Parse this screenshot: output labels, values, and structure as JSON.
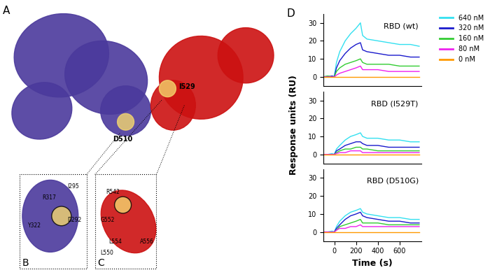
{
  "panels": {
    "A": {
      "label": "A",
      "sites": [
        "D510",
        "I529"
      ]
    },
    "B": {
      "label": "B",
      "residues": [
        "R317",
        "I295",
        "Y322",
        "D292"
      ]
    },
    "C": {
      "label": "C",
      "residues": [
        "R542",
        "G552",
        "L554",
        "L550",
        "A556"
      ]
    },
    "D": {
      "label": "D",
      "y_label": "Response units (RU)"
    }
  },
  "chart_data": [
    {
      "type": "line",
      "title": "RBD (wt)",
      "legend": "upper right",
      "tick_labels": "y",
      "x": [
        -100,
        -60,
        -20,
        0,
        20,
        50,
        100,
        150,
        200,
        240,
        260,
        300,
        400,
        500,
        600,
        700,
        780
      ],
      "xlim": [
        -100,
        800
      ],
      "ylim": [
        -5,
        35
      ],
      "yticks": [
        0,
        10,
        20,
        30
      ],
      "series": [
        {
          "name": "640 nM",
          "color": "#33e0f0",
          "values": [
            0,
            0.5,
            0,
            0.5,
            8,
            14,
            20,
            24,
            27,
            30,
            23,
            21,
            20,
            19,
            18,
            18,
            17
          ]
        },
        {
          "name": "320 nM",
          "color": "#1a1acc",
          "values": [
            0,
            0,
            0.5,
            0,
            5,
            9,
            13,
            16,
            18,
            19,
            15,
            14,
            13,
            12,
            12,
            11,
            11
          ]
        },
        {
          "name": "160 nM",
          "color": "#33cc33",
          "values": [
            0,
            0.5,
            0,
            0,
            3,
            5,
            7,
            8,
            9,
            10,
            8,
            7,
            7,
            7,
            6,
            6,
            6
          ]
        },
        {
          "name": "80 nM",
          "color": "#ee22ee",
          "values": [
            0,
            0,
            0,
            0,
            1,
            2,
            3,
            4,
            5,
            6,
            4,
            4,
            4,
            3,
            3,
            3,
            3
          ]
        },
        {
          "name": "0 nM",
          "color": "#ff9900",
          "values": [
            0,
            0,
            0,
            0,
            0,
            0,
            0,
            0,
            0,
            0,
            0,
            0,
            0,
            0,
            0,
            0,
            0
          ]
        }
      ]
    },
    {
      "type": "line",
      "title": "RBD (I529T)",
      "tick_labels": "y",
      "x": [
        -100,
        -60,
        -20,
        0,
        20,
        50,
        100,
        150,
        200,
        240,
        260,
        300,
        400,
        500,
        600,
        700,
        780
      ],
      "xlim": [
        -100,
        800
      ],
      "ylim": [
        -5,
        35
      ],
      "yticks": [
        0,
        10,
        20,
        30
      ],
      "series": [
        {
          "name": "640 nM",
          "color": "#33e0f0",
          "values": [
            0,
            0,
            0.5,
            0,
            3,
            5,
            8,
            10,
            11,
            12,
            10,
            9,
            9,
            8,
            8,
            7,
            7
          ]
        },
        {
          "name": "320 nM",
          "color": "#1a1acc",
          "values": [
            0,
            0,
            0,
            0,
            2,
            3,
            5,
            6,
            7,
            7,
            6,
            5,
            5,
            4,
            4,
            4,
            4
          ]
        },
        {
          "name": "160 nM",
          "color": "#33cc33",
          "values": [
            0,
            0,
            0,
            0,
            1,
            2,
            3,
            3,
            4,
            4,
            3,
            3,
            2,
            2,
            2,
            2,
            2
          ]
        },
        {
          "name": "80 nM",
          "color": "#ee22ee",
          "values": [
            0,
            0,
            0,
            0,
            0.5,
            1,
            1,
            2,
            2,
            2,
            1,
            1,
            1,
            1,
            1,
            1,
            1
          ]
        },
        {
          "name": "0 nM",
          "color": "#ff9900",
          "values": [
            0,
            0,
            0,
            0,
            0,
            0,
            0,
            0,
            0,
            0,
            0,
            0,
            0,
            0,
            0,
            0,
            0
          ]
        }
      ]
    },
    {
      "type": "line",
      "title": "RBD (D510G)",
      "x_label": "Time (s)",
      "x": [
        -100,
        -60,
        -20,
        0,
        20,
        50,
        100,
        150,
        200,
        240,
        260,
        300,
        400,
        500,
        600,
        700,
        780
      ],
      "xlim": [
        -100,
        800
      ],
      "xticks": [
        0,
        200,
        400,
        600
      ],
      "ylim": [
        -5,
        35
      ],
      "yticks": [
        0,
        10,
        20,
        30
      ],
      "series": [
        {
          "name": "640 nM",
          "color": "#33e0f0",
          "values": [
            0,
            0,
            0.5,
            0,
            3,
            6,
            9,
            11,
            12,
            13,
            11,
            10,
            9,
            8,
            8,
            7,
            7
          ]
        },
        {
          "name": "320 nM",
          "color": "#1a1acc",
          "values": [
            0,
            0,
            0,
            0,
            2,
            4,
            7,
            9,
            10,
            11,
            9,
            8,
            7,
            6,
            6,
            5,
            5
          ]
        },
        {
          "name": "160 nM",
          "color": "#33cc33",
          "values": [
            0,
            0,
            0,
            0,
            1,
            3,
            4,
            5,
            6,
            7,
            5,
            5,
            5,
            4,
            4,
            4,
            4
          ]
        },
        {
          "name": "80 nM",
          "color": "#ee22ee",
          "values": [
            0,
            0,
            0,
            0,
            1,
            2,
            2,
            3,
            3,
            4,
            3,
            3,
            3,
            3,
            3,
            3,
            3
          ]
        },
        {
          "name": "0 nM",
          "color": "#ff9900",
          "values": [
            0,
            0,
            0,
            0,
            0,
            0,
            0,
            0,
            0,
            0,
            0,
            0,
            0,
            0,
            0,
            0,
            0
          ]
        }
      ]
    }
  ]
}
